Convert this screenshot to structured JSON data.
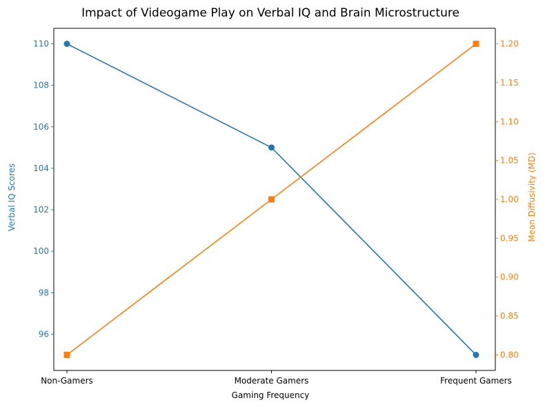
{
  "chart_data": {
    "type": "line",
    "title": "Impact of Videogame Play on Verbal IQ and Brain Microstructure",
    "xlabel": "Gaming Frequency",
    "categories": [
      "Non-Gamers",
      "Moderate Gamers",
      "Frequent Gamers"
    ],
    "series": [
      {
        "values": [
          110,
          105,
          95
        ],
        "axis": "left",
        "color": "#1f77b4",
        "marker": "circle"
      },
      {
        "values": [
          0.8,
          1.0,
          1.2
        ],
        "axis": "right",
        "color": "#ff7f0e",
        "marker": "square"
      }
    ],
    "y_left": {
      "label": "Verbal IQ Scores",
      "ylim": [
        94.25,
        110.75
      ],
      "ticks": [
        96,
        98,
        100,
        102,
        104,
        106,
        108,
        110
      ],
      "tick_labels": [
        "96",
        "98",
        "100",
        "102",
        "104",
        "106",
        "108",
        "110"
      ],
      "color": "#1f77b4"
    },
    "y_right": {
      "label": "Mean Diffusivity (MD)",
      "ylim": [
        0.78,
        1.22
      ],
      "ticks": [
        0.8,
        0.85,
        0.9,
        0.95,
        1.0,
        1.05,
        1.1,
        1.15,
        1.2
      ],
      "tick_labels": [
        "0.80",
        "0.85",
        "0.90",
        "0.95",
        "1.00",
        "1.05",
        "1.10",
        "1.15",
        "1.20"
      ],
      "color": "#ff7f0e"
    },
    "grid": false,
    "legend": "none"
  }
}
